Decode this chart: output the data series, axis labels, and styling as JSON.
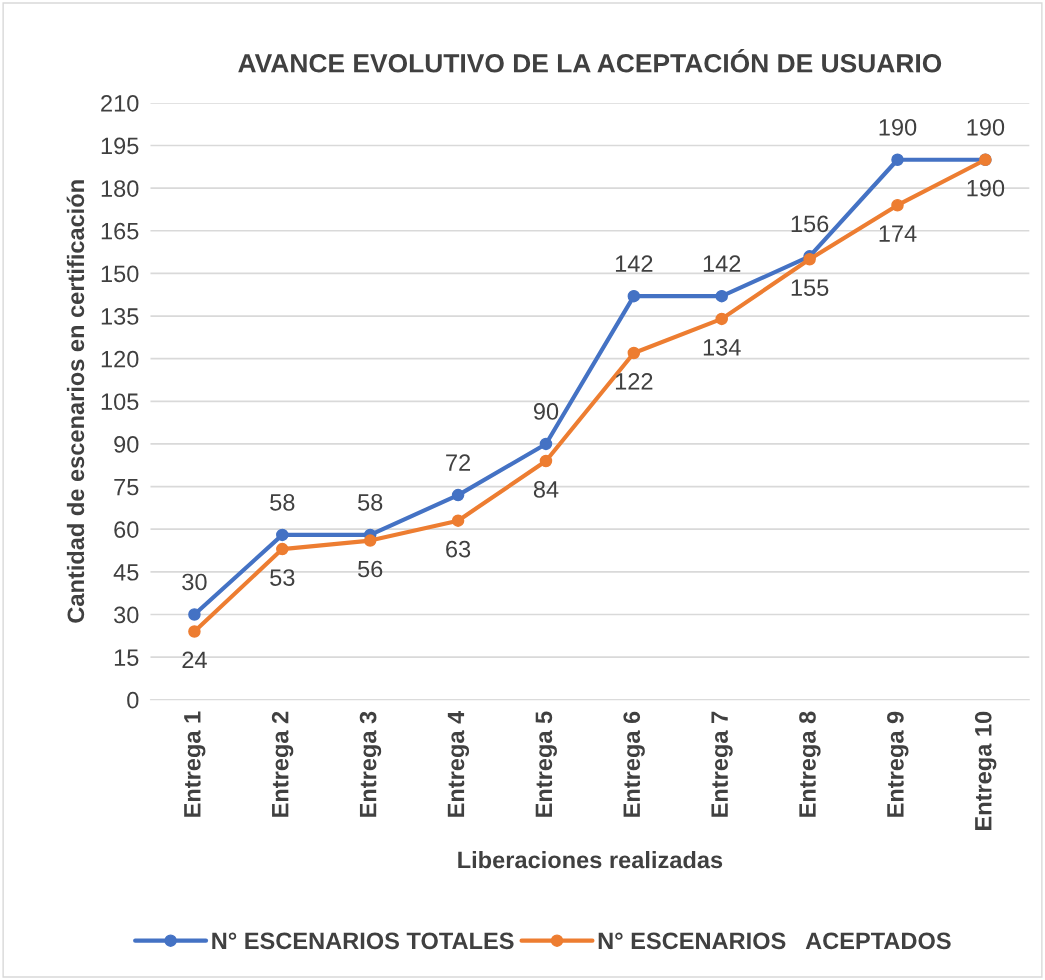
{
  "chart_data": {
    "type": "line",
    "title": "AVANCE EVOLUTIVO DE LA ACEPTACIÓN DE USUARIO",
    "xlabel": "Liberaciones realizadas",
    "ylabel": "Cantidad de escenarios en certificación",
    "categories": [
      "Entrega 1",
      "Entrega 2",
      "Entrega 3",
      "Entrega 4",
      "Entrega 5",
      "Entrega 6",
      "Entrega 7",
      "Entrega 8",
      "Entrega 9",
      "Entrega 10"
    ],
    "series": [
      {
        "name": "N° ESCENARIOS TOTALES",
        "color": "#4472c4",
        "values": [
          30,
          58,
          58,
          72,
          90,
          142,
          142,
          156,
          190,
          190
        ]
      },
      {
        "name": "N° ESCENARIOS   ACEPTADOS",
        "color": "#ed7d31",
        "values": [
          24,
          53,
          56,
          63,
          84,
          122,
          134,
          155,
          174,
          190
        ]
      }
    ],
    "ylim": [
      0,
      210
    ],
    "yticks": [
      0,
      15,
      30,
      45,
      60,
      75,
      90,
      105,
      120,
      135,
      150,
      165,
      180,
      195,
      210
    ],
    "grid": "y",
    "legend": "bottom",
    "marker": "circle",
    "line_style": "solid",
    "data_labels": true
  }
}
